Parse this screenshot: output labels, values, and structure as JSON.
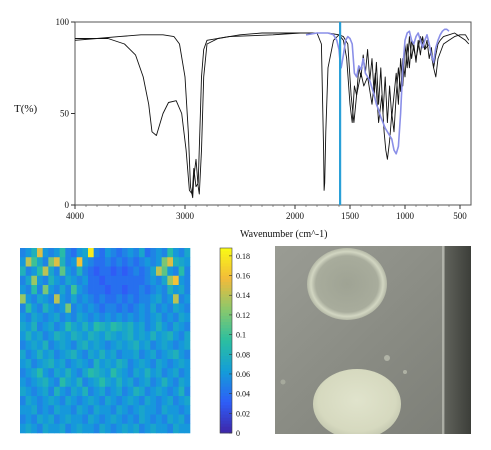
{
  "chart_data": [
    {
      "type": "line",
      "xlabel": "Wavenumber (cm^-1)",
      "ylabel": "T(%)",
      "xlim": [
        4000,
        400
      ],
      "x_reversed": true,
      "ylim": [
        0,
        100
      ],
      "x_ticks": [
        "4000",
        "3000",
        "2000",
        "1500",
        "1000",
        "500"
      ],
      "x_tick_values": [
        4000,
        3000,
        2000,
        1500,
        1000,
        500
      ],
      "y_ticks": [
        "0",
        "50",
        "100"
      ],
      "y_tick_values": [
        0,
        50,
        100
      ],
      "marker_line": {
        "x": 1590,
        "color": "#2aa0d8"
      },
      "series": [
        {
          "color": "#111111",
          "x": [
            4000,
            3700,
            3550,
            3450,
            3380,
            3330,
            3300,
            3260,
            3200,
            3150,
            3080,
            3030,
            2990,
            2960,
            2935,
            2920,
            2900,
            2880,
            2860,
            2850,
            2830,
            2800,
            2600,
            2200,
            1950,
            1800,
            1760,
            1740,
            1735,
            1730,
            1720,
            1700,
            1650,
            1600,
            1560,
            1520,
            1490,
            1465,
            1440,
            1400,
            1375,
            1340,
            1300,
            1270,
            1240,
            1210,
            1190,
            1175,
            1160,
            1140,
            1120,
            1100,
            1080,
            1060,
            1040,
            1020,
            1000,
            980,
            960,
            940,
            900,
            860,
            820,
            780,
            740,
            720,
            700,
            650,
            600,
            550,
            500,
            450,
            420
          ],
          "y": [
            91,
            91,
            88,
            82,
            70,
            55,
            40,
            38,
            50,
            56,
            57,
            50,
            30,
            8,
            6,
            20,
            10,
            12,
            50,
            70,
            85,
            90,
            92,
            93,
            94,
            94,
            88,
            30,
            8,
            12,
            40,
            75,
            90,
            93,
            92,
            88,
            60,
            45,
            60,
            72,
            65,
            70,
            55,
            72,
            45,
            60,
            40,
            30,
            25,
            35,
            50,
            40,
            60,
            75,
            62,
            80,
            70,
            88,
            75,
            90,
            80,
            92,
            85,
            88,
            75,
            70,
            80,
            88,
            90,
            92,
            93,
            93,
            90
          ]
        },
        {
          "color": "#111111",
          "x": [
            4000,
            3800,
            3600,
            3400,
            3200,
            3100,
            3050,
            3000,
            2970,
            2950,
            2930,
            2920,
            2900,
            2880,
            2870,
            2850,
            2830,
            2800,
            2700,
            2500,
            2300,
            2100,
            1900,
            1700,
            1600,
            1560,
            1530,
            1500,
            1480,
            1460,
            1440,
            1420,
            1400,
            1380,
            1360,
            1340,
            1320,
            1300,
            1280,
            1260,
            1240,
            1220,
            1200,
            1180,
            1160,
            1140,
            1120,
            1100,
            1080,
            1060,
            1040,
            1020,
            1000,
            980,
            960,
            940,
            920,
            900,
            880,
            860,
            840,
            820,
            800,
            780,
            760,
            740,
            720,
            700,
            680,
            650,
            600,
            550,
            500,
            450,
            420
          ],
          "y": [
            90,
            91,
            92,
            93,
            93,
            92,
            88,
            70,
            40,
            10,
            4,
            15,
            25,
            10,
            6,
            30,
            70,
            88,
            91,
            93,
            94,
            94,
            94,
            94,
            93,
            90,
            80,
            55,
            45,
            65,
            60,
            75,
            70,
            82,
            72,
            85,
            68,
            80,
            60,
            78,
            55,
            75,
            50,
            70,
            45,
            65,
            48,
            60,
            72,
            55,
            80,
            65,
            88,
            75,
            92,
            80,
            88,
            78,
            90,
            82,
            92,
            85,
            90,
            80,
            86,
            75,
            82,
            88,
            90,
            92,
            93,
            94,
            92,
            90,
            88
          ]
        },
        {
          "color": "#8a8fe8",
          "x": [
            1900,
            1800,
            1700,
            1650,
            1620,
            1600,
            1590,
            1580,
            1560,
            1540,
            1520,
            1500,
            1480,
            1460,
            1440,
            1420,
            1400,
            1380,
            1360,
            1340,
            1320,
            1300,
            1280,
            1260,
            1240,
            1220,
            1200,
            1180,
            1160,
            1140,
            1120,
            1100,
            1080,
            1060,
            1040,
            1020,
            1000,
            980,
            960,
            940,
            920,
            900,
            880,
            860,
            840,
            820,
            800,
            780,
            760,
            740,
            720,
            700,
            680,
            660,
            640,
            620,
            600
          ],
          "y": [
            93,
            94,
            94,
            93,
            90,
            85,
            78,
            75,
            82,
            90,
            92,
            91,
            88,
            72,
            70,
            76,
            74,
            80,
            72,
            70,
            68,
            64,
            60,
            55,
            52,
            48,
            45,
            42,
            40,
            38,
            36,
            30,
            28,
            32,
            50,
            75,
            90,
            94,
            95,
            90,
            88,
            92,
            94,
            90,
            86,
            90,
            93,
            88,
            82,
            78,
            86,
            90,
            93,
            95,
            96,
            96,
            95
          ]
        }
      ]
    },
    {
      "type": "heatmap",
      "colorbar_ticks": [
        "0",
        "0.02",
        "0.04",
        "0.06",
        "0.08",
        "0.1",
        "0.12",
        "0.14",
        "0.16",
        "0.18"
      ],
      "colorbar_values": [
        0,
        0.02,
        0.04,
        0.06,
        0.08,
        0.1,
        0.12,
        0.14,
        0.16,
        0.18
      ],
      "vlim": [
        0,
        0.188
      ],
      "colormap": [
        "#3e26a8",
        "#2e5ef8",
        "#149dd8",
        "#2bbfa0",
        "#8ac86c",
        "#f2bb3a",
        "#f9fb15"
      ],
      "rows": 20,
      "cols": 30,
      "values": [
        [
          0.05,
          0.06,
          0.08,
          0.15,
          0.06,
          0.05,
          0.06,
          0.09,
          0.05,
          0.04,
          0.06,
          0.07,
          0.18,
          0.05,
          0.04,
          0.06,
          0.05,
          0.04,
          0.05,
          0.06,
          0.05,
          0.07,
          0.04,
          0.05,
          0.06,
          0.05,
          0.09,
          0.06,
          0.05,
          0.07
        ],
        [
          0.06,
          0.14,
          0.1,
          0.07,
          0.05,
          0.12,
          0.15,
          0.08,
          0.05,
          0.06,
          0.16,
          0.06,
          0.05,
          0.04,
          0.04,
          0.05,
          0.04,
          0.05,
          0.04,
          0.05,
          0.04,
          0.05,
          0.06,
          0.05,
          0.06,
          0.12,
          0.15,
          0.08,
          0.07,
          0.06
        ],
        [
          0.08,
          0.05,
          0.06,
          0.09,
          0.14,
          0.07,
          0.05,
          0.11,
          0.06,
          0.05,
          0.08,
          0.05,
          0.04,
          0.03,
          0.04,
          0.04,
          0.03,
          0.04,
          0.03,
          0.04,
          0.05,
          0.04,
          0.05,
          0.07,
          0.14,
          0.11,
          0.06,
          0.05,
          0.09,
          0.05
        ],
        [
          0.05,
          0.07,
          0.13,
          0.06,
          0.05,
          0.08,
          0.06,
          0.05,
          0.07,
          0.06,
          0.05,
          0.06,
          0.04,
          0.04,
          0.03,
          0.04,
          0.04,
          0.04,
          0.04,
          0.04,
          0.04,
          0.04,
          0.05,
          0.06,
          0.05,
          0.07,
          0.13,
          0.16,
          0.06,
          0.05
        ],
        [
          0.06,
          0.05,
          0.09,
          0.05,
          0.12,
          0.06,
          0.05,
          0.07,
          0.05,
          0.1,
          0.06,
          0.05,
          0.04,
          0.04,
          0.04,
          0.03,
          0.04,
          0.04,
          0.03,
          0.04,
          0.04,
          0.05,
          0.04,
          0.05,
          0.06,
          0.05,
          0.08,
          0.06,
          0.07,
          0.05
        ],
        [
          0.13,
          0.06,
          0.05,
          0.07,
          0.06,
          0.05,
          0.14,
          0.06,
          0.05,
          0.07,
          0.05,
          0.06,
          0.05,
          0.04,
          0.05,
          0.04,
          0.04,
          0.05,
          0.04,
          0.05,
          0.04,
          0.05,
          0.05,
          0.06,
          0.07,
          0.05,
          0.06,
          0.14,
          0.05,
          0.06
        ],
        [
          0.05,
          0.09,
          0.06,
          0.05,
          0.08,
          0.06,
          0.05,
          0.06,
          0.12,
          0.05,
          0.06,
          0.05,
          0.06,
          0.05,
          0.04,
          0.05,
          0.05,
          0.04,
          0.05,
          0.04,
          0.05,
          0.06,
          0.05,
          0.07,
          0.05,
          0.06,
          0.05,
          0.07,
          0.06,
          0.05
        ],
        [
          0.06,
          0.05,
          0.07,
          0.06,
          0.05,
          0.06,
          0.07,
          0.05,
          0.06,
          0.05,
          0.07,
          0.06,
          0.05,
          0.06,
          0.05,
          0.06,
          0.05,
          0.06,
          0.05,
          0.06,
          0.05,
          0.06,
          0.05,
          0.06,
          0.07,
          0.05,
          0.06,
          0.05,
          0.07,
          0.06
        ],
        [
          0.07,
          0.06,
          0.08,
          0.05,
          0.06,
          0.07,
          0.05,
          0.06,
          0.09,
          0.07,
          0.06,
          0.08,
          0.06,
          0.09,
          0.08,
          0.07,
          0.09,
          0.08,
          0.07,
          0.08,
          0.06,
          0.07,
          0.05,
          0.06,
          0.08,
          0.06,
          0.05,
          0.07,
          0.06,
          0.05
        ],
        [
          0.06,
          0.08,
          0.06,
          0.07,
          0.05,
          0.06,
          0.08,
          0.07,
          0.06,
          0.08,
          0.07,
          0.06,
          0.08,
          0.07,
          0.06,
          0.08,
          0.07,
          0.06,
          0.07,
          0.08,
          0.06,
          0.07,
          0.06,
          0.08,
          0.06,
          0.07,
          0.08,
          0.06,
          0.05,
          0.07
        ],
        [
          0.05,
          0.06,
          0.07,
          0.06,
          0.08,
          0.05,
          0.06,
          0.07,
          0.06,
          0.05,
          0.07,
          0.08,
          0.06,
          0.07,
          0.06,
          0.05,
          0.06,
          0.07,
          0.06,
          0.07,
          0.08,
          0.06,
          0.07,
          0.05,
          0.06,
          0.07,
          0.06,
          0.05,
          0.06,
          0.07
        ],
        [
          0.07,
          0.05,
          0.06,
          0.08,
          0.06,
          0.07,
          0.05,
          0.06,
          0.07,
          0.08,
          0.06,
          0.05,
          0.07,
          0.06,
          0.08,
          0.06,
          0.07,
          0.05,
          0.06,
          0.06,
          0.07,
          0.05,
          0.06,
          0.07,
          0.05,
          0.06,
          0.07,
          0.08,
          0.06,
          0.05
        ],
        [
          0.06,
          0.07,
          0.05,
          0.06,
          0.07,
          0.08,
          0.06,
          0.07,
          0.05,
          0.06,
          0.07,
          0.06,
          0.05,
          0.08,
          0.06,
          0.07,
          0.06,
          0.08,
          0.07,
          0.05,
          0.06,
          0.07,
          0.06,
          0.05,
          0.07,
          0.06,
          0.05,
          0.06,
          0.07,
          0.06
        ],
        [
          0.05,
          0.06,
          0.07,
          0.09,
          0.06,
          0.05,
          0.07,
          0.06,
          0.08,
          0.06,
          0.05,
          0.07,
          0.09,
          0.08,
          0.07,
          0.06,
          0.09,
          0.07,
          0.06,
          0.05,
          0.07,
          0.06,
          0.08,
          0.06,
          0.07,
          0.05,
          0.06,
          0.07,
          0.05,
          0.06
        ],
        [
          0.06,
          0.05,
          0.06,
          0.07,
          0.08,
          0.06,
          0.05,
          0.09,
          0.07,
          0.06,
          0.08,
          0.05,
          0.06,
          0.07,
          0.09,
          0.07,
          0.06,
          0.08,
          0.06,
          0.07,
          0.05,
          0.06,
          0.07,
          0.05,
          0.06,
          0.08,
          0.06,
          0.05,
          0.07,
          0.06
        ],
        [
          0.07,
          0.06,
          0.05,
          0.06,
          0.07,
          0.05,
          0.08,
          0.06,
          0.05,
          0.07,
          0.06,
          0.08,
          0.05,
          0.06,
          0.07,
          0.05,
          0.06,
          0.07,
          0.05,
          0.06,
          0.08,
          0.07,
          0.05,
          0.06,
          0.07,
          0.06,
          0.05,
          0.06,
          0.08,
          0.05
        ],
        [
          0.05,
          0.07,
          0.06,
          0.05,
          0.06,
          0.07,
          0.06,
          0.05,
          0.07,
          0.06,
          0.05,
          0.06,
          0.07,
          0.06,
          0.05,
          0.07,
          0.06,
          0.05,
          0.06,
          0.07,
          0.06,
          0.05,
          0.07,
          0.06,
          0.05,
          0.06,
          0.07,
          0.05,
          0.06,
          0.07
        ],
        [
          0.06,
          0.06,
          0.07,
          0.05,
          0.06,
          0.05,
          0.07,
          0.06,
          0.06,
          0.05,
          0.07,
          0.06,
          0.05,
          0.07,
          0.06,
          0.06,
          0.05,
          0.07,
          0.06,
          0.05,
          0.06,
          0.07,
          0.06,
          0.06,
          0.05,
          0.07,
          0.06,
          0.06,
          0.05,
          0.06
        ],
        [
          0.05,
          0.06,
          0.05,
          0.07,
          0.06,
          0.07,
          0.05,
          0.06,
          0.07,
          0.06,
          0.06,
          0.05,
          0.07,
          0.06,
          0.05,
          0.06,
          0.07,
          0.06,
          0.05,
          0.06,
          0.05,
          0.07,
          0.06,
          0.05,
          0.06,
          0.05,
          0.07,
          0.06,
          0.07,
          0.05
        ],
        [
          0.06,
          0.07,
          0.06,
          0.05,
          0.07,
          0.06,
          0.06,
          0.07,
          0.05,
          0.06,
          0.07,
          0.06,
          0.06,
          0.05,
          0.07,
          0.06,
          0.05,
          0.06,
          0.07,
          0.06,
          0.07,
          0.05,
          0.06,
          0.07,
          0.06,
          0.06,
          0.05,
          0.07,
          0.06,
          0.06
        ]
      ]
    }
  ],
  "photo": {
    "name": "sample-photo",
    "colors": {
      "background": "#8a8c84",
      "upper_spot": "#b8bda8",
      "upper_ring": "#d2d6c2",
      "lower_spot": "#dcdfc6",
      "edge_shadow": "#4a4c46",
      "highlight": "#bfc2b6"
    }
  }
}
